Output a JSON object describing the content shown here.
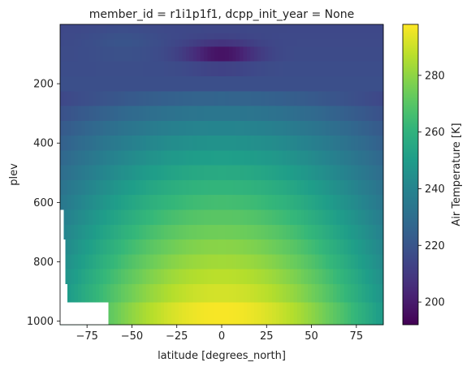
{
  "chart_data": {
    "type": "heatmap",
    "title": "member_id = r1i1p1f1, dcpp_init_year = None",
    "xlabel": "latitude [degrees_north]",
    "ylabel": "plev",
    "x_ticks": [
      -75,
      -50,
      -25,
      0,
      25,
      50,
      75
    ],
    "x_tick_labels": [
      "−75",
      "−50",
      "−25",
      "0",
      "25",
      "50",
      "75"
    ],
    "xlim": [
      -90,
      90
    ],
    "y_ticks": [
      200,
      400,
      600,
      800,
      1000
    ],
    "y_tick_labels": [
      "200",
      "400",
      "600",
      "800",
      "1000"
    ],
    "ylim": [
      1012,
      0
    ],
    "y_inverted": true,
    "colorbar": {
      "label": "Air Temperature [K]",
      "range": [
        192,
        298
      ],
      "ticks": [
        200,
        220,
        240,
        260,
        280
      ],
      "tick_labels": [
        "200",
        "220",
        "240",
        "260",
        "280"
      ],
      "colormap": "viridis"
    },
    "plev_bands": [
      0,
      10,
      30,
      50,
      75,
      125,
      175,
      225,
      275,
      325,
      375,
      425,
      475,
      525,
      575,
      625,
      675,
      725,
      775,
      825,
      875,
      937,
      1012
    ],
    "plev_levels": [
      5,
      20,
      40,
      62,
      100,
      150,
      200,
      250,
      300,
      350,
      400,
      450,
      500,
      550,
      600,
      650,
      700,
      750,
      800,
      850,
      900,
      975
    ],
    "missing_data": [
      {
        "lat_max": -88,
        "plev_min": 625
      },
      {
        "lat_max": -87,
        "plev_min": 725
      },
      {
        "lat_max": -86,
        "plev_min": 875
      },
      {
        "lat_max": -63,
        "plev_min": 937
      }
    ]
  }
}
